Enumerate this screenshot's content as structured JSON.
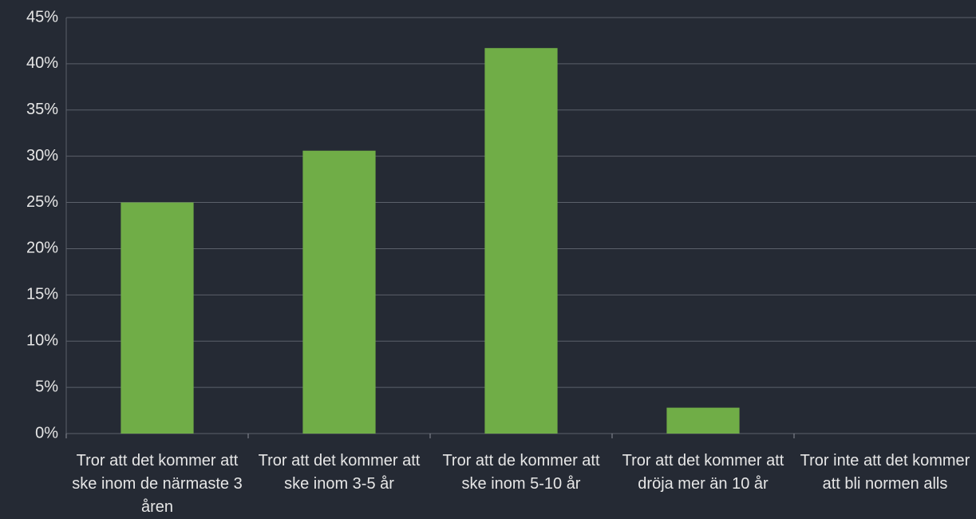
{
  "chart_data": {
    "type": "bar",
    "categories": [
      "Tror att det kommer att ske inom de närmaste 3 åren",
      "Tror att det kommer att ske inom 3-5 år",
      "Tror att de kommer att ske inom 5-10 år",
      "Tror att det kommer att dröja mer än 10 år",
      "Tror inte att det kommer att bli normen alls"
    ],
    "values": [
      25,
      30.6,
      41.7,
      2.8,
      0
    ],
    "color": "#70ad47",
    "ylim": [
      0,
      45
    ],
    "yticks": [
      {
        "value": 0,
        "label": "0%"
      },
      {
        "value": 5,
        "label": "5%"
      },
      {
        "value": 10,
        "label": "10%"
      },
      {
        "value": 15,
        "label": "15%"
      },
      {
        "value": 20,
        "label": "20%"
      },
      {
        "value": 25,
        "label": "25%"
      },
      {
        "value": 30,
        "label": "30%"
      },
      {
        "value": 35,
        "label": "35%"
      },
      {
        "value": 40,
        "label": "40%"
      },
      {
        "value": 45,
        "label": "45%"
      }
    ],
    "grid": true
  }
}
